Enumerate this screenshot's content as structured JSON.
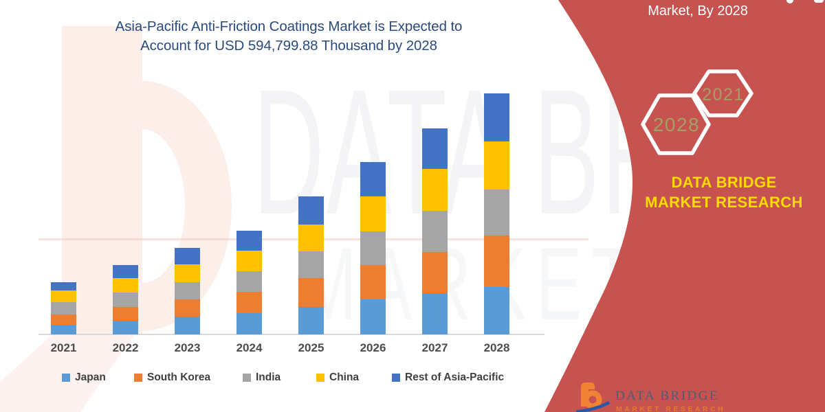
{
  "title": {
    "line1": "Asia-Pacific Anti-Friction Coatings Market is Expected to",
    "line2": "Account for USD 594,799.88 Thousand by 2028"
  },
  "right_panel": {
    "header": "Market, By 2028",
    "hexagons": [
      {
        "label": "2028"
      },
      {
        "label": "2021"
      }
    ],
    "brand_text": "DATA BRIDGE MARKET RESEARCH",
    "background_color": "#C6534F",
    "brand_text_color": "#FFDB00",
    "hexagon_label_color": "#A4A065"
  },
  "watermark": {
    "line1": "DATA BRIDGE",
    "line2": "MARKET RESEARCH"
  },
  "footer_logo": {
    "name": "DATA BRIDGE",
    "subtext": "MARKET RESEARCH"
  },
  "chart_data": {
    "type": "bar",
    "stacked": true,
    "title": "Asia-Pacific Anti-Friction Coatings Market, USD Thousand",
    "unit": "USD Thousand",
    "categories": [
      "2021",
      "2022",
      "2023",
      "2024",
      "2025",
      "2026",
      "2027",
      "2028"
    ],
    "series": [
      {
        "name": "Japan",
        "color": "#5B9BD5",
        "values": [
          23100,
          34300,
          44400,
          52300,
          68000,
          87200,
          101700,
          117300
        ]
      },
      {
        "name": "South Korea",
        "color": "#ED7D31",
        "values": [
          26400,
          33800,
          41600,
          53400,
          71400,
          84300,
          102400,
          127500
        ]
      },
      {
        "name": "India",
        "color": "#A5A5A5",
        "values": [
          29900,
          35000,
          42200,
          50100,
          66300,
          83100,
          101200,
          113699.88
        ]
      },
      {
        "name": "China",
        "color": "#FFC000",
        "values": [
          29900,
          36600,
          45000,
          50100,
          65800,
          85500,
          104100,
          117300
        ]
      },
      {
        "name": "Rest of Asia-Pacific",
        "color": "#4472C4",
        "values": [
          18900,
          31800,
          41000,
          50100,
          69100,
          86000,
          100000,
          119000
        ]
      }
    ],
    "totals": [
      128200,
      171500,
      214200,
      256000,
      340600,
      426100,
      509400,
      594799.88
    ],
    "callout_total_2028": 594799.88,
    "xlabel": "",
    "ylabel": "",
    "ylim": [
      0,
      600000
    ],
    "grid": false,
    "legend_position": "bottom",
    "values_are_estimated_from_pixels": true
  }
}
